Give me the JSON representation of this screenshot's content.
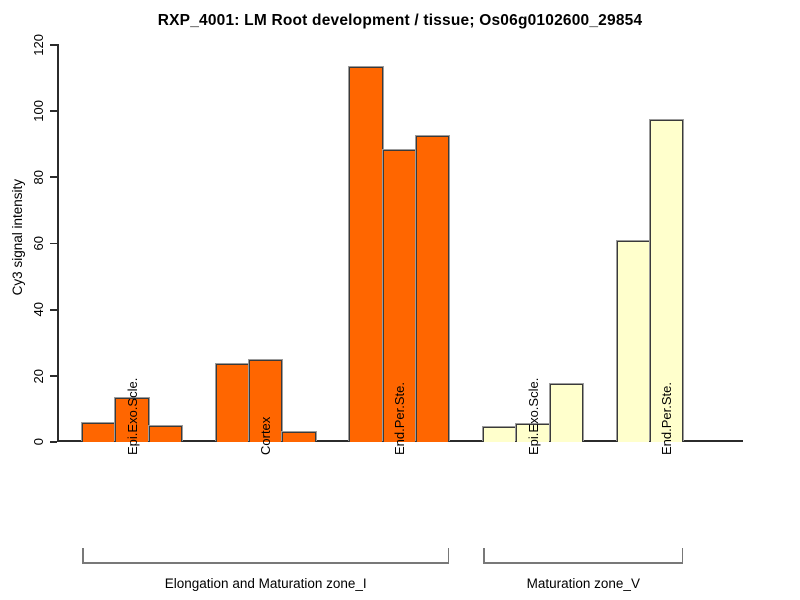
{
  "chart_data": {
    "type": "bar",
    "title": "RXP_4001: LM Root development / tissue; Os06g0102600_29854",
    "ylabel": "Cy3 signal intensity",
    "xlabel": "",
    "ylim": [
      0,
      120
    ],
    "yticks": [
      0,
      20,
      40,
      60,
      80,
      100,
      120
    ],
    "grid": false,
    "legend": "none",
    "bars_per_group": 3,
    "groups": [
      {
        "label": "Epi.Exo.Scle.",
        "zone_index": 0,
        "color": "#FF6600",
        "values": [
          5.7,
          13.3,
          4.8
        ]
      },
      {
        "label": "Cortex",
        "zone_index": 0,
        "color": "#FF6600",
        "values": [
          23.7,
          24.7,
          3.0
        ]
      },
      {
        "label": "End.Per.Ste.",
        "zone_index": 0,
        "color": "#FF6600",
        "values": [
          113.4,
          88.2,
          92.6
        ]
      },
      {
        "label": "Epi.Exo.Scle.",
        "zone_index": 1,
        "color": "#FFFFCC",
        "values": [
          4.5,
          5.3,
          17.4
        ]
      },
      {
        "label": "End.Per.Ste.",
        "zone_index": 1,
        "color": "#FFFFCC",
        "values": [
          60.8,
          97.3,
          0
        ]
      }
    ],
    "zones": [
      {
        "label": "Elongation and Maturation zone_I",
        "groups": [
          0,
          1,
          2
        ]
      },
      {
        "label": "Maturation zone_V",
        "groups": [
          3,
          4
        ]
      }
    ],
    "colors": {
      "series_orange": "#FF6600",
      "series_pale_yellow": "#FFFFCC",
      "bar_border": "#3A3A3A",
      "bar_ghost": "#9C9C9C",
      "axis": "#2B2B2B",
      "bracket": "#787878",
      "background": "#FFFFFF"
    }
  }
}
